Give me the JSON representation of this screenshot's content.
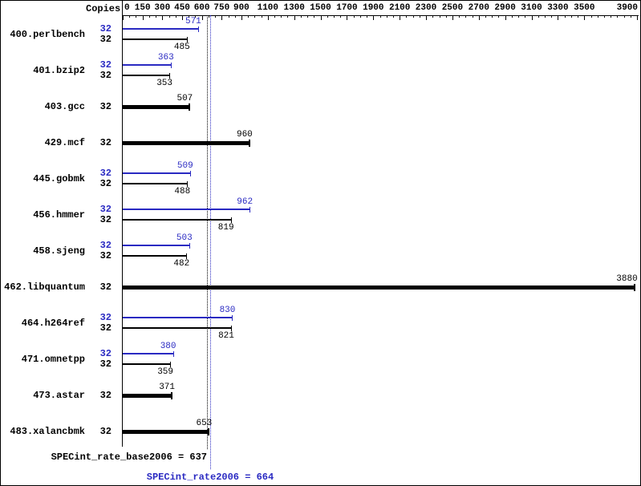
{
  "header": {
    "copies_label": "Copies"
  },
  "footer": {
    "base_summary": "SPECint_rate_base2006 = 637",
    "peak_summary": "SPECint_rate2006 = 664"
  },
  "colors": {
    "peak_blue": "#2a2ac2",
    "base_black": "#000000"
  },
  "chart_data": {
    "type": "bar",
    "orientation": "horizontal",
    "xlim": [
      0,
      3900
    ],
    "axis_ticks": [
      0,
      150,
      300,
      450,
      600,
      750,
      900,
      1100,
      1300,
      1500,
      1700,
      1900,
      2100,
      2300,
      2500,
      2700,
      2900,
      3100,
      3300,
      3500,
      3900
    ],
    "reference_lines": [
      {
        "name": "base",
        "value": 637
      },
      {
        "name": "peak",
        "value": 664
      }
    ],
    "benchmarks": [
      {
        "name": "400.perlbench",
        "copies": 32,
        "peak": 571,
        "base": 485
      },
      {
        "name": "401.bzip2",
        "copies": 32,
        "peak": 363,
        "base": 353
      },
      {
        "name": "403.gcc",
        "copies": 32,
        "base": 507
      },
      {
        "name": "429.mcf",
        "copies": 32,
        "base": 960
      },
      {
        "name": "445.gobmk",
        "copies": 32,
        "peak": 509,
        "base": 488
      },
      {
        "name": "456.hmmer",
        "copies": 32,
        "peak": 962,
        "base": 819
      },
      {
        "name": "458.sjeng",
        "copies": 32,
        "peak": 503,
        "base": 482
      },
      {
        "name": "462.libquantum",
        "copies": 32,
        "base": 3880
      },
      {
        "name": "464.h264ref",
        "copies": 32,
        "peak": 830,
        "base": 821
      },
      {
        "name": "471.omnetpp",
        "copies": 32,
        "peak": 380,
        "base": 359
      },
      {
        "name": "473.astar",
        "copies": 32,
        "base": 371
      },
      {
        "name": "483.xalancbmk",
        "copies": 32,
        "base": 653
      }
    ]
  }
}
